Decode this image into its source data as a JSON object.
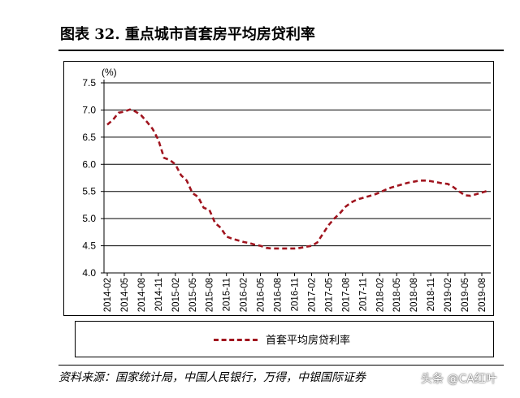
{
  "page": {
    "title": "图表 32. 重点城市首套房平均房贷利率",
    "source": "资料来源：国家统计局，中国人民银行，万得，中银国际证券",
    "watermark": "头条 @CA红叶",
    "colors": {
      "series": "#a0141e",
      "grid": "#000000",
      "text": "#000000"
    }
  },
  "chart_data": {
    "type": "line",
    "title": "图表 32. 重点城市首套房平均房贷利率",
    "ylabel": "(%)",
    "ylim": [
      4.0,
      7.5
    ],
    "yticks": [
      "4.0",
      "4.5",
      "5.0",
      "5.5",
      "6.0",
      "6.5",
      "7.0",
      "7.5"
    ],
    "grid": true,
    "legend": "bottom",
    "categories": [
      "2014-02",
      "2014-05",
      "2014-08",
      "2014-11",
      "2015-02",
      "2015-05",
      "2015-08",
      "2015-11",
      "2016-02",
      "2016-05",
      "2016-08",
      "2016-11",
      "2017-02",
      "2017-05",
      "2017-08",
      "2017-11",
      "2018-02",
      "2018-05",
      "2018-08",
      "2018-11",
      "2019-02",
      "2019-05",
      "2019-08"
    ],
    "series": [
      {
        "name": "首套平均房贷利率",
        "color": "#a0141e",
        "style": "dashed",
        "x": [
          "2014-02",
          "2014-03",
          "2014-04",
          "2014-05",
          "2014-06",
          "2014-07",
          "2014-08",
          "2014-09",
          "2014-10",
          "2014-11",
          "2014-12",
          "2015-01",
          "2015-02",
          "2015-03",
          "2015-04",
          "2015-05",
          "2015-06",
          "2015-07",
          "2015-08",
          "2015-09",
          "2015-10",
          "2015-11",
          "2015-12",
          "2016-01",
          "2016-02",
          "2016-03",
          "2016-04",
          "2016-05",
          "2016-06",
          "2016-07",
          "2016-08",
          "2016-09",
          "2016-10",
          "2016-11",
          "2016-12",
          "2017-01",
          "2017-02",
          "2017-03",
          "2017-04",
          "2017-05",
          "2017-06",
          "2017-07",
          "2017-08",
          "2017-09",
          "2017-10",
          "2017-11",
          "2017-12",
          "2018-01",
          "2018-02",
          "2018-03",
          "2018-04",
          "2018-05",
          "2018-06",
          "2018-07",
          "2018-08",
          "2018-09",
          "2018-10",
          "2018-11",
          "2018-12",
          "2019-01",
          "2019-02",
          "2019-03",
          "2019-04",
          "2019-05",
          "2019-06",
          "2019-07",
          "2019-08",
          "2019-09"
        ],
        "values": [
          6.73,
          6.82,
          6.95,
          6.97,
          7.01,
          6.97,
          6.9,
          6.78,
          6.65,
          6.45,
          6.12,
          6.08,
          6.0,
          5.8,
          5.7,
          5.47,
          5.4,
          5.2,
          5.16,
          4.92,
          4.83,
          4.67,
          4.63,
          4.6,
          4.57,
          4.55,
          4.52,
          4.5,
          4.46,
          4.45,
          4.45,
          4.45,
          4.45,
          4.45,
          4.46,
          4.48,
          4.5,
          4.56,
          4.72,
          4.88,
          5.0,
          5.1,
          5.22,
          5.3,
          5.35,
          5.38,
          5.41,
          5.44,
          5.48,
          5.53,
          5.57,
          5.6,
          5.63,
          5.66,
          5.68,
          5.7,
          5.7,
          5.69,
          5.67,
          5.65,
          5.64,
          5.58,
          5.5,
          5.43,
          5.42,
          5.45,
          5.48,
          5.51
        ]
      }
    ]
  }
}
